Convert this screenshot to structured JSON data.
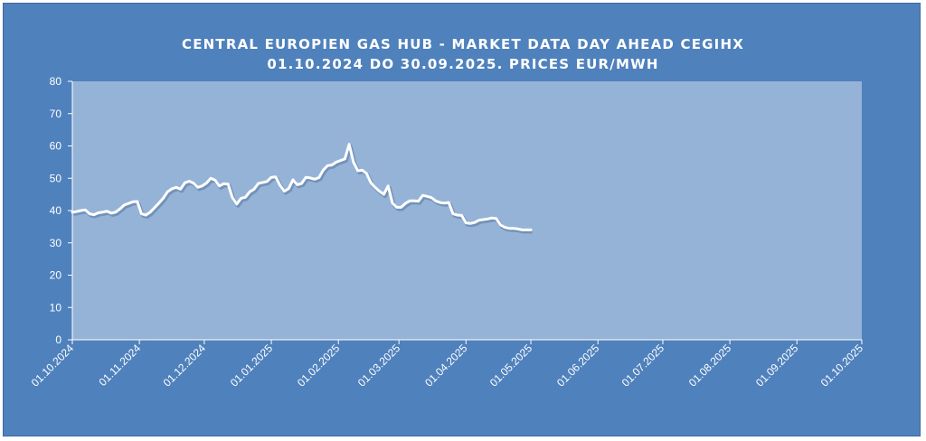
{
  "colors": {
    "frame_background": "#4f81bd",
    "plot_background": "#95b3d7",
    "line": "#ffffff",
    "text": "#ffffff"
  },
  "chart_data": {
    "type": "line",
    "title_lines": [
      "CENTRAL EUROPIEN GAS HUB - MARKET DATA DAY AHEAD CEGIHX",
      "01.10.2024 DO 30.09.2025. PRICES EUR/MWH"
    ],
    "xlabel": "",
    "ylabel": "",
    "ylim": [
      0,
      80
    ],
    "yticks": [
      0,
      10,
      20,
      30,
      40,
      50,
      60,
      70,
      80
    ],
    "xlim": [
      "01.10.2024",
      "01.10.2025"
    ],
    "xticks": [
      "01.10.2024",
      "01.11.2024",
      "01.12.2024",
      "01.01.2025",
      "01.02.2025",
      "01.03.2025",
      "01.04.2025",
      "01.05.2025",
      "01.06.2025",
      "01.07.2025",
      "01.08.2025",
      "01.09.2025",
      "01.10.2025"
    ],
    "grid": false,
    "legend": "none",
    "series": [
      {
        "name": "",
        "x": [
          "01.10.2024",
          "03.10.2024",
          "05.10.2024",
          "07.10.2024",
          "09.10.2024",
          "11.10.2024",
          "13.10.2024",
          "15.10.2024",
          "17.10.2024",
          "19.10.2024",
          "21.10.2024",
          "23.10.2024",
          "25.10.2024",
          "27.10.2024",
          "29.10.2024",
          "31.10.2024",
          "02.11.2024",
          "04.11.2024",
          "06.11.2024",
          "08.11.2024",
          "10.11.2024",
          "12.11.2024",
          "14.11.2024",
          "16.11.2024",
          "18.11.2024",
          "20.11.2024",
          "22.11.2024",
          "24.11.2024",
          "26.11.2024",
          "28.11.2024",
          "30.11.2024",
          "02.12.2024",
          "04.12.2024",
          "06.12.2024",
          "08.12.2024",
          "10.12.2024",
          "12.12.2024",
          "14.12.2024",
          "16.12.2024",
          "18.12.2024",
          "20.12.2024",
          "22.12.2024",
          "24.12.2024",
          "26.12.2024",
          "28.12.2024",
          "30.12.2024",
          "01.01.2025",
          "03.01.2025",
          "05.01.2025",
          "07.01.2025",
          "09.01.2025",
          "11.01.2025",
          "13.01.2025",
          "15.01.2025",
          "17.01.2025",
          "19.01.2025",
          "21.01.2025",
          "23.01.2025",
          "25.01.2025",
          "27.01.2025",
          "29.01.2025",
          "31.01.2025",
          "02.02.2025",
          "04.02.2025",
          "06.02.2025",
          "08.02.2025",
          "10.02.2025",
          "12.02.2025",
          "14.02.2025",
          "16.02.2025",
          "18.02.2025",
          "20.02.2025",
          "22.02.2025",
          "24.02.2025",
          "26.02.2025",
          "28.02.2025",
          "02.03.2025",
          "04.03.2025",
          "06.03.2025",
          "08.03.2025",
          "10.03.2025",
          "12.03.2025",
          "14.03.2025",
          "16.03.2025",
          "18.03.2025",
          "20.03.2025",
          "22.03.2025",
          "24.03.2025",
          "26.03.2025",
          "28.03.2025",
          "30.03.2025",
          "01.04.2025",
          "03.04.2025",
          "05.04.2025",
          "07.04.2025",
          "09.04.2025",
          "11.04.2025",
          "13.04.2025",
          "15.04.2025",
          "17.04.2025",
          "19.04.2025",
          "21.04.2025",
          "23.04.2025",
          "25.04.2025",
          "27.04.2025",
          "29.04.2025",
          "01.05.2025"
        ],
        "values": [
          39.5,
          39.7,
          40.0,
          40.2,
          39.0,
          38.7,
          39.3,
          39.5,
          39.8,
          39.2,
          39.5,
          40.5,
          41.7,
          42.2,
          42.7,
          42.8,
          39.0,
          38.6,
          39.5,
          40.9,
          42.3,
          43.8,
          45.8,
          46.7,
          47.2,
          46.6,
          48.6,
          49.1,
          48.5,
          47.2,
          47.6,
          48.5,
          50.0,
          49.4,
          47.6,
          48.3,
          48.2,
          44.0,
          42.0,
          43.8,
          44.1,
          45.8,
          46.6,
          48.4,
          48.7,
          49.0,
          50.3,
          50.4,
          47.8,
          46.0,
          46.8,
          49.5,
          48.0,
          48.4,
          50.3,
          50.1,
          49.7,
          50.2,
          52.5,
          53.9,
          54.1,
          55.0,
          55.5,
          56.0,
          60.5,
          55.0,
          52.3,
          52.5,
          51.5,
          48.6,
          47.2,
          46.0,
          45.0,
          47.6,
          42.3,
          41.0,
          41.0,
          42.2,
          43.0,
          43.0,
          42.9,
          44.7,
          44.4,
          44.0,
          43.0,
          42.5,
          42.3,
          42.5,
          39.0,
          38.6,
          38.5,
          36.2,
          36.0,
          36.3,
          37.0,
          37.2,
          37.4,
          37.7,
          37.5,
          35.5,
          34.8,
          34.5,
          34.5,
          34.3,
          34.0,
          34.0,
          34.0
        ]
      }
    ]
  }
}
